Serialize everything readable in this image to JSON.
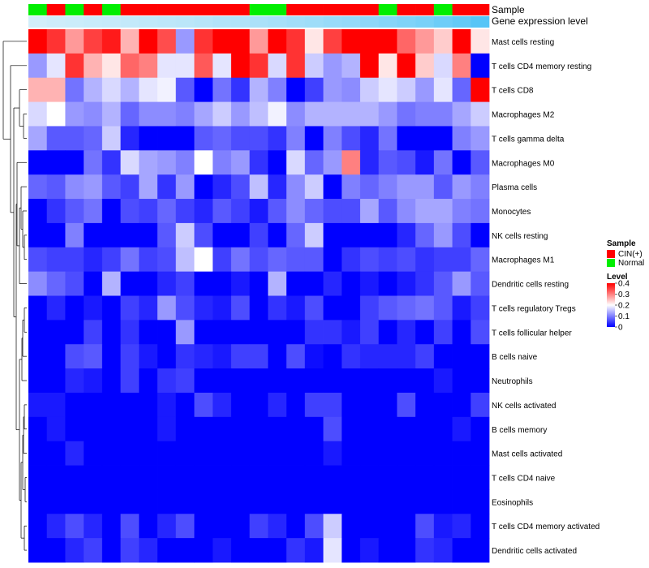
{
  "chart_data": {
    "type": "heatmap",
    "annotation_labels": [
      "Sample",
      "Gene expression level"
    ],
    "sample_groups": [
      "N",
      "C",
      "N",
      "C",
      "N",
      "C",
      "C",
      "C",
      "C",
      "C",
      "C",
      "C",
      "N",
      "N",
      "C",
      "C",
      "C",
      "C",
      "C",
      "N",
      "C",
      "C",
      "N",
      "C",
      "C"
    ],
    "expression_level": [
      0.05,
      0.08,
      0.1,
      0.12,
      0.14,
      0.16,
      0.18,
      0.2,
      0.22,
      0.25,
      0.28,
      0.3,
      0.33,
      0.36,
      0.4,
      0.43,
      0.47,
      0.5,
      0.55,
      0.6,
      0.65,
      0.7,
      0.78,
      0.85,
      0.95
    ],
    "rows": [
      "Mast cells resting",
      "T cells CD4 memory resting",
      "T cells CD8",
      "Macrophages M2",
      "T cells gamma delta",
      "Macrophages M0",
      "Plasma cells",
      "Monocytes",
      "NK cells resting",
      "Macrophages M1",
      "Dendritic cells resting",
      "T cells regulatory  Tregs",
      "T cells follicular helper",
      "B cells naive",
      "Neutrophils",
      "NK cells activated",
      "B cells memory",
      "Mast cells activated",
      "T cells CD4 naive",
      "Eosinophils",
      "T cells CD4 memory activated",
      "Dendritic cells activated"
    ],
    "values": [
      [
        0.4,
        0.36,
        0.28,
        0.35,
        0.38,
        0.26,
        0.4,
        0.34,
        0.12,
        0.36,
        0.4,
        0.4,
        0.28,
        0.4,
        0.36,
        0.22,
        0.35,
        0.4,
        0.4,
        0.4,
        0.32,
        0.28,
        0.24,
        0.4,
        0.22
      ],
      [
        0.12,
        0.18,
        0.36,
        0.26,
        0.22,
        0.32,
        0.3,
        0.18,
        0.18,
        0.33,
        0.18,
        0.4,
        0.36,
        0.17,
        0.36,
        0.16,
        0.12,
        0.14,
        0.4,
        0.22,
        0.4,
        0.24,
        0.17,
        0.3,
        0.0
      ],
      [
        0.26,
        0.26,
        0.09,
        0.14,
        0.17,
        0.14,
        0.18,
        0.19,
        0.07,
        0.0,
        0.09,
        0.04,
        0.14,
        0.1,
        0.0,
        0.05,
        0.12,
        0.11,
        0.16,
        0.18,
        0.16,
        0.12,
        0.18,
        0.08,
        0.4
      ],
      [
        0.17,
        0.2,
        0.12,
        0.11,
        0.14,
        0.08,
        0.11,
        0.11,
        0.1,
        0.13,
        0.16,
        0.12,
        0.15,
        0.19,
        0.11,
        0.14,
        0.14,
        0.14,
        0.14,
        0.12,
        0.09,
        0.1,
        0.1,
        0.13,
        0.16
      ],
      [
        0.13,
        0.07,
        0.07,
        0.08,
        0.16,
        0.03,
        0.0,
        0.0,
        0.0,
        0.07,
        0.08,
        0.06,
        0.06,
        0.04,
        0.1,
        0.0,
        0.1,
        0.06,
        0.03,
        0.09,
        0.0,
        0.0,
        0.0,
        0.1,
        0.12
      ],
      [
        0.0,
        0.0,
        0.0,
        0.09,
        0.04,
        0.17,
        0.13,
        0.12,
        0.1,
        0.2,
        0.1,
        0.12,
        0.04,
        0.0,
        0.17,
        0.08,
        0.12,
        0.3,
        0.03,
        0.07,
        0.06,
        0.02,
        0.09,
        0.0,
        0.07
      ],
      [
        0.08,
        0.07,
        0.11,
        0.12,
        0.07,
        0.05,
        0.13,
        0.04,
        0.12,
        0.0,
        0.03,
        0.06,
        0.15,
        0.03,
        0.11,
        0.16,
        0.0,
        0.1,
        0.08,
        0.1,
        0.12,
        0.12,
        0.07,
        0.12,
        0.1
      ],
      [
        0.0,
        0.04,
        0.07,
        0.09,
        0.0,
        0.06,
        0.05,
        0.08,
        0.05,
        0.03,
        0.07,
        0.05,
        0.02,
        0.07,
        0.11,
        0.08,
        0.06,
        0.06,
        0.13,
        0.07,
        0.11,
        0.13,
        0.13,
        0.1,
        0.09
      ],
      [
        0.0,
        0.0,
        0.1,
        0.0,
        0.0,
        0.0,
        0.0,
        0.07,
        0.16,
        0.06,
        0.0,
        0.0,
        0.05,
        0.0,
        0.08,
        0.16,
        0.0,
        0.0,
        0.0,
        0.0,
        0.03,
        0.08,
        0.12,
        0.06,
        0.0
      ],
      [
        0.06,
        0.05,
        0.05,
        0.03,
        0.05,
        0.09,
        0.05,
        0.06,
        0.15,
        0.2,
        0.05,
        0.09,
        0.06,
        0.08,
        0.07,
        0.07,
        0.0,
        0.04,
        0.06,
        0.05,
        0.06,
        0.04,
        0.05,
        0.05,
        0.08
      ],
      [
        0.11,
        0.08,
        0.06,
        0.0,
        0.14,
        0.0,
        0.0,
        0.03,
        0.05,
        0.0,
        0.0,
        0.02,
        0.0,
        0.14,
        0.0,
        0.0,
        0.03,
        0.0,
        0.02,
        0.0,
        0.02,
        0.04,
        0.07,
        0.12,
        0.07
      ],
      [
        0.0,
        0.03,
        0.0,
        0.02,
        0.0,
        0.05,
        0.03,
        0.12,
        0.06,
        0.03,
        0.02,
        0.06,
        0.0,
        0.04,
        0.02,
        0.06,
        0.0,
        0.0,
        0.05,
        0.07,
        0.08,
        0.09,
        0.07,
        0.02,
        0.05
      ],
      [
        0.0,
        0.0,
        0.0,
        0.05,
        0.0,
        0.04,
        0.0,
        0.0,
        0.12,
        0.0,
        0.0,
        0.0,
        0.0,
        0.0,
        0.0,
        0.04,
        0.04,
        0.02,
        0.05,
        0.0,
        0.03,
        0.0,
        0.05,
        0.0,
        0.06
      ],
      [
        0.0,
        0.0,
        0.06,
        0.07,
        0.0,
        0.05,
        0.02,
        0.0,
        0.04,
        0.03,
        0.02,
        0.05,
        0.05,
        0.0,
        0.06,
        0.01,
        0.0,
        0.04,
        0.03,
        0.03,
        0.03,
        0.05,
        0.0,
        0.0,
        0.0
      ],
      [
        0.0,
        0.0,
        0.03,
        0.02,
        0.0,
        0.05,
        0.0,
        0.04,
        0.05,
        0.0,
        0.0,
        0.0,
        0.0,
        0.0,
        0.0,
        0.0,
        0.0,
        0.0,
        0.0,
        0.0,
        0.0,
        0.0,
        0.02,
        0.0,
        0.0
      ],
      [
        0.02,
        0.02,
        0.0,
        0.0,
        0.0,
        0.0,
        0.0,
        0.02,
        0.0,
        0.06,
        0.03,
        0.0,
        0.0,
        0.03,
        0.0,
        0.05,
        0.05,
        0.0,
        0.0,
        0.0,
        0.06,
        0.0,
        0.0,
        0.0,
        0.05
      ],
      [
        0.0,
        0.02,
        0.0,
        0.0,
        0.0,
        0.0,
        0.0,
        0.02,
        0.0,
        0.0,
        0.0,
        0.0,
        0.0,
        0.0,
        0.0,
        0.0,
        0.06,
        0.0,
        0.0,
        0.0,
        0.0,
        0.0,
        0.0,
        0.02,
        0.0
      ],
      [
        0.0,
        0.0,
        0.03,
        0.0,
        0.0,
        0.0,
        0.0,
        0.0,
        0.0,
        0.0,
        0.0,
        0.0,
        0.0,
        0.0,
        0.0,
        0.0,
        0.02,
        0.0,
        0.0,
        0.0,
        0.0,
        0.0,
        0.0,
        0.0,
        0.0
      ],
      [
        0.0,
        0.0,
        0.0,
        0.0,
        0.0,
        0.0,
        0.0,
        0.0,
        0.0,
        0.0,
        0.0,
        0.0,
        0.0,
        0.0,
        0.0,
        0.0,
        0.0,
        0.0,
        0.0,
        0.0,
        0.0,
        0.0,
        0.0,
        0.0,
        0.0
      ],
      [
        0.0,
        0.0,
        0.0,
        0.0,
        0.0,
        0.0,
        0.0,
        0.0,
        0.0,
        0.0,
        0.0,
        0.0,
        0.0,
        0.0,
        0.0,
        0.0,
        0.0,
        0.0,
        0.0,
        0.0,
        0.0,
        0.0,
        0.0,
        0.0,
        0.0
      ],
      [
        0.0,
        0.03,
        0.06,
        0.03,
        0.0,
        0.06,
        0.0,
        0.03,
        0.06,
        0.0,
        0.0,
        0.0,
        0.05,
        0.03,
        0.0,
        0.06,
        0.16,
        0.0,
        0.0,
        0.0,
        0.0,
        0.06,
        0.02,
        0.03,
        0.0
      ],
      [
        0.0,
        0.0,
        0.03,
        0.05,
        0.0,
        0.05,
        0.03,
        0.0,
        0.0,
        0.0,
        0.02,
        0.0,
        0.0,
        0.0,
        0.04,
        0.02,
        0.18,
        0.0,
        0.02,
        0.0,
        0.0,
        0.04,
        0.03,
        0.0,
        0.0
      ]
    ],
    "legend": {
      "sample_title": "Sample",
      "sample_entries": [
        {
          "name": "CIN(+)",
          "color": "#ff0000"
        },
        {
          "name": "Normal",
          "color": "#00ee00"
        }
      ],
      "level_title": "Level",
      "level_ticks": [
        0.4,
        0.3,
        0.2,
        0.1,
        0
      ],
      "level_range": [
        0,
        0.4
      ]
    },
    "colors": {
      "low": "#0000ff",
      "mid": "#ffffff",
      "high": "#ff0000",
      "expr_light": "#d9f0fa",
      "expr_dark": "#4fc3f7"
    }
  }
}
